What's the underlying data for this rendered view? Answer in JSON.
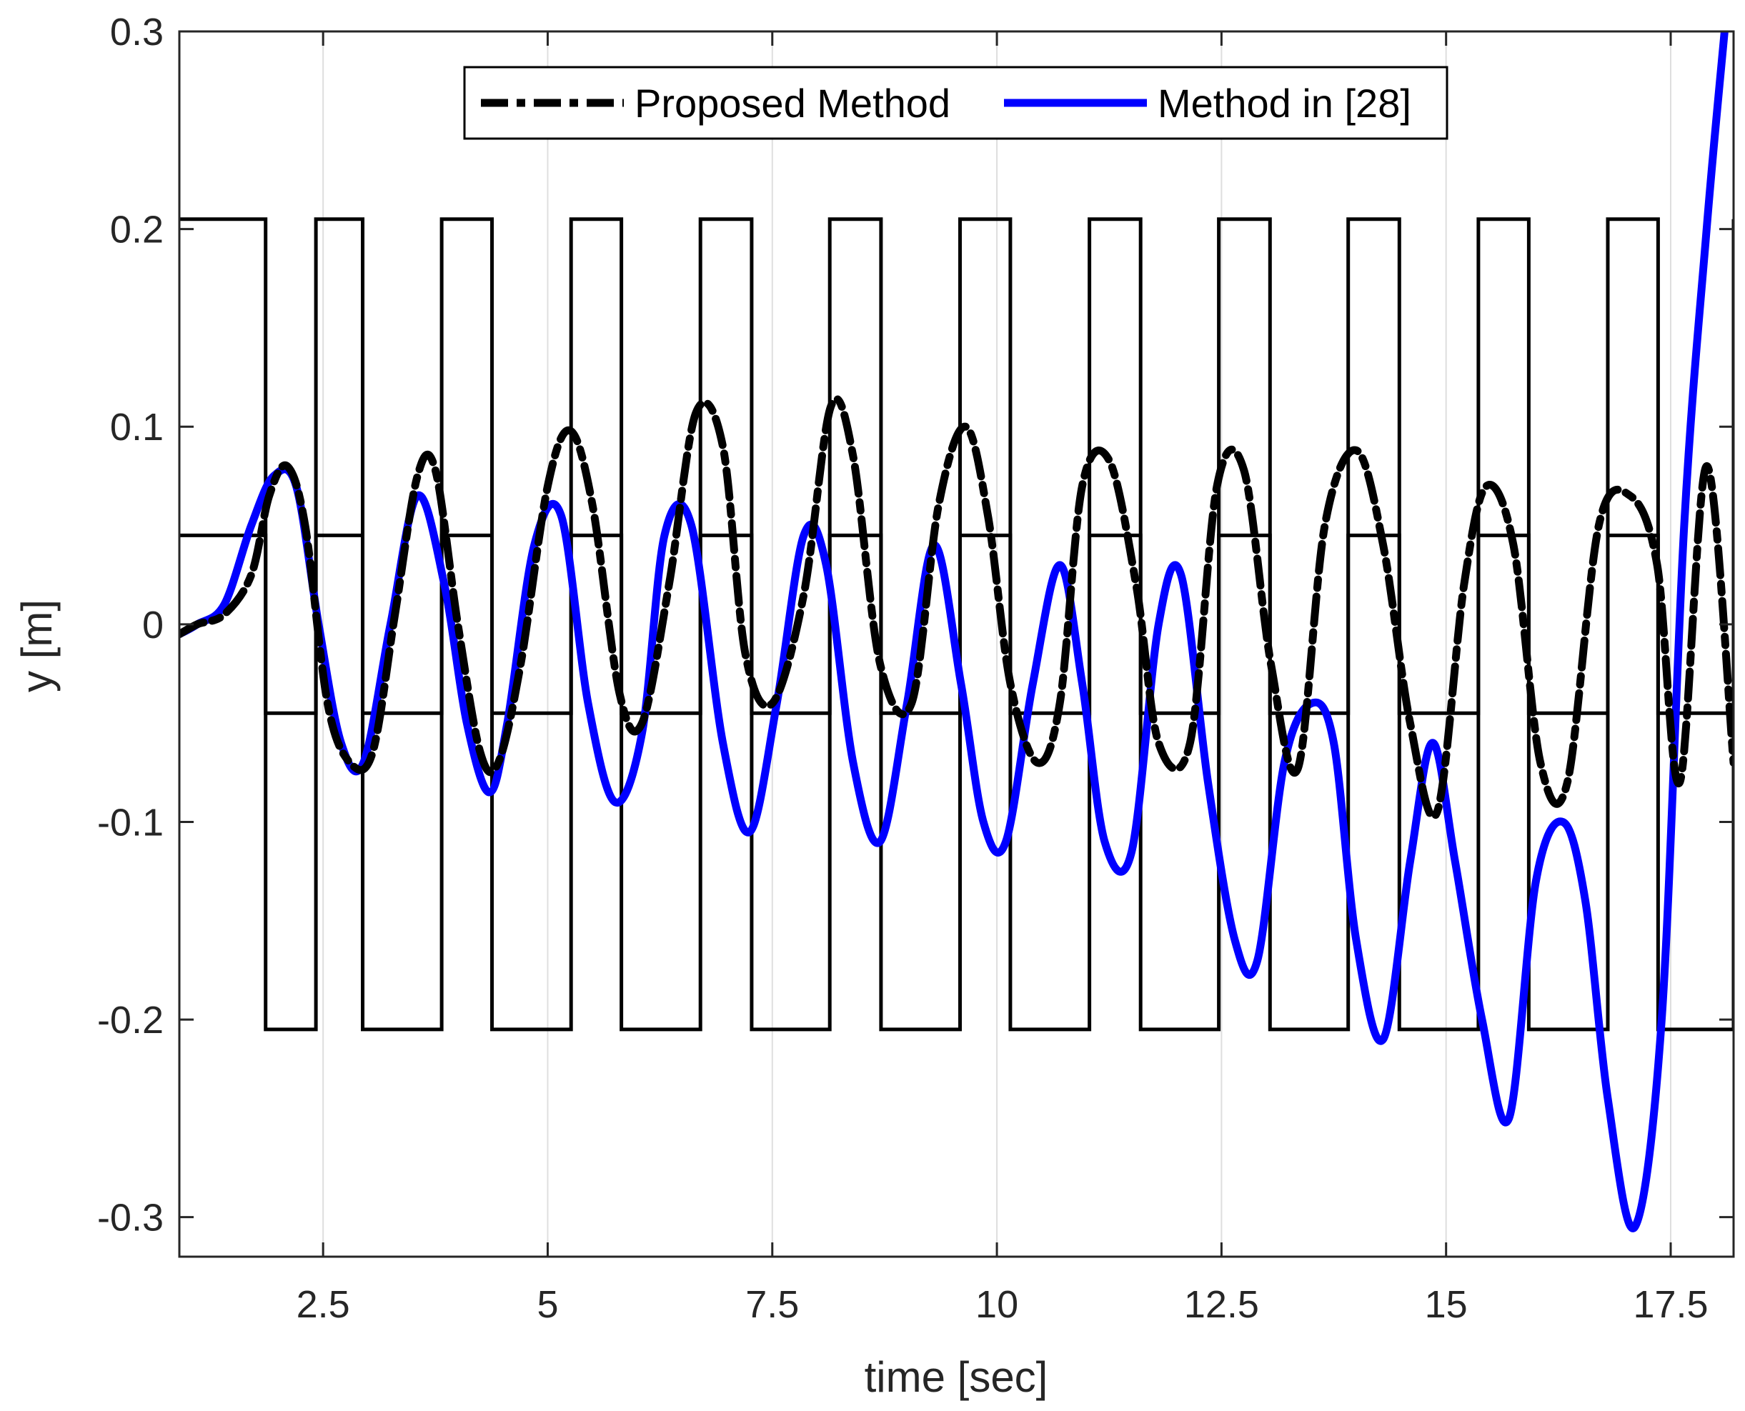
{
  "chart_data": {
    "type": "line",
    "title": "",
    "xlabel": "time [sec]",
    "ylabel": "y [m]",
    "xlim": [
      0.9,
      18.2
    ],
    "ylim": [
      -0.32,
      0.3
    ],
    "xticks": [
      2.5,
      5,
      7.5,
      10,
      12.5,
      15,
      17.5
    ],
    "xtick_labels": [
      "2.5",
      "5",
      "7.5",
      "10",
      "12.5",
      "15",
      "17.5"
    ],
    "yticks": [
      0.3,
      0.2,
      0.1,
      0,
      -0.1,
      -0.2,
      -0.3
    ],
    "ytick_labels": [
      "0.3",
      "0.2",
      "0.1",
      "0",
      "-0.1",
      "-0.2",
      "-0.3"
    ],
    "grid_x": true,
    "legend_position": "top-center",
    "constraint_bounds": {
      "outer_upper": 0.205,
      "outer_lower": -0.205,
      "inner_upper": 0.045,
      "inner_lower": -0.045,
      "switch_times": [
        1.86,
        2.42,
        2.94,
        3.82,
        4.38,
        5.26,
        5.82,
        6.7,
        7.27,
        8.14,
        8.71,
        9.59,
        10.15,
        11.03,
        11.6,
        12.47,
        13.04,
        13.91,
        14.48,
        15.36,
        15.92,
        16.8,
        17.36,
        18.2
      ]
    },
    "series": [
      {
        "name": "Proposed Method",
        "style": "dash-dot",
        "color": "#000000",
        "x": [
          0.9,
          1.1,
          1.4,
          1.7,
          1.9,
          2.1,
          2.3,
          2.55,
          2.8,
          3.05,
          3.3,
          3.55,
          3.75,
          4.0,
          4.25,
          4.45,
          4.7,
          5.0,
          5.25,
          5.5,
          5.8,
          6.05,
          6.35,
          6.65,
          6.95,
          7.2,
          7.5,
          7.85,
          8.15,
          8.4,
          8.7,
          9.05,
          9.35,
          9.65,
          9.9,
          10.15,
          10.45,
          10.7,
          10.95,
          11.25,
          11.55,
          11.8,
          12.15,
          12.45,
          12.75,
          13.05,
          13.35,
          13.65,
          14.0,
          14.3,
          14.6,
          14.9,
          15.2,
          15.45,
          15.75,
          16.05,
          16.35,
          16.7,
          17.05,
          17.35,
          17.6,
          17.9,
          18.2
        ],
        "y": [
          -0.005,
          0.0,
          0.005,
          0.025,
          0.065,
          0.08,
          0.05,
          -0.04,
          -0.07,
          -0.065,
          0.005,
          0.075,
          0.078,
          0.0,
          -0.065,
          -0.07,
          -0.02,
          0.07,
          0.098,
          0.06,
          -0.035,
          -0.05,
          0.02,
          0.107,
          0.09,
          -0.015,
          -0.04,
          0.015,
          0.11,
          0.085,
          -0.02,
          -0.04,
          0.06,
          0.1,
          0.055,
          -0.03,
          -0.07,
          -0.04,
          0.07,
          0.083,
          0.02,
          -0.06,
          -0.06,
          0.07,
          0.078,
          -0.02,
          -0.073,
          0.05,
          0.088,
          0.04,
          -0.05,
          -0.095,
          0.02,
          0.07,
          0.04,
          -0.07,
          -0.08,
          0.05,
          0.065,
          0.03,
          -0.08,
          0.08,
          -0.07
        ]
      },
      {
        "name": "Method in [28]",
        "style": "solid",
        "color": "#0000ff",
        "x": [
          0.9,
          1.1,
          1.4,
          1.7,
          1.95,
          2.2,
          2.45,
          2.7,
          2.95,
          3.25,
          3.55,
          3.85,
          4.1,
          4.35,
          4.55,
          4.85,
          5.15,
          5.45,
          5.75,
          6.05,
          6.3,
          6.6,
          6.95,
          7.25,
          7.55,
          7.85,
          8.1,
          8.4,
          8.7,
          9.0,
          9.3,
          9.6,
          9.85,
          10.1,
          10.4,
          10.7,
          10.95,
          11.2,
          11.5,
          11.8,
          12.05,
          12.35,
          12.65,
          12.9,
          13.2,
          13.5,
          13.75,
          14.0,
          14.3,
          14.6,
          14.85,
          15.1,
          15.4,
          15.7,
          16.0,
          16.3,
          16.55,
          16.8,
          17.1,
          17.4,
          17.65,
          17.9,
          18.1
        ],
        "y": [
          -0.005,
          0.0,
          0.01,
          0.05,
          0.075,
          0.07,
          0.0,
          -0.06,
          -0.07,
          0.0,
          0.065,
          0.02,
          -0.05,
          -0.085,
          -0.05,
          0.04,
          0.055,
          -0.04,
          -0.09,
          -0.055,
          0.045,
          0.05,
          -0.06,
          -0.105,
          -0.04,
          0.045,
          0.03,
          -0.07,
          -0.11,
          -0.04,
          0.04,
          -0.03,
          -0.1,
          -0.11,
          -0.03,
          0.03,
          -0.03,
          -0.11,
          -0.115,
          0.0,
          0.025,
          -0.08,
          -0.16,
          -0.17,
          -0.07,
          -0.04,
          -0.06,
          -0.16,
          -0.21,
          -0.12,
          -0.06,
          -0.12,
          -0.2,
          -0.25,
          -0.13,
          -0.1,
          -0.14,
          -0.24,
          -0.305,
          -0.2,
          0.05,
          0.2,
          0.3
        ]
      }
    ]
  }
}
